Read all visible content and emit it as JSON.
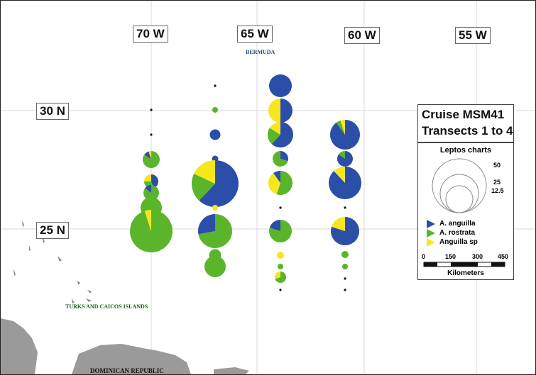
{
  "map": {
    "longitude_labels": [
      "70 W",
      "65 W",
      "60 W",
      "55 W"
    ],
    "latitude_labels": [
      "30 N",
      "25 N"
    ],
    "places": {
      "bermuda": "BERMUDA",
      "turks_caicos": "TURKS AND CAICOS ISLANDS",
      "dominican_republic": "DOMINICAN REPUBLIC"
    }
  },
  "title": {
    "line1": "Cruise MSM41",
    "line2": "Transects 1 to 4"
  },
  "legend": {
    "header": "Leptos charts",
    "sizes": [
      "50",
      "25",
      "12.5"
    ],
    "species": [
      {
        "name": "A. anguilla",
        "color": "#2b4ea8",
        "icon": "triangle-right"
      },
      {
        "name": "A. rostrata",
        "color": "#5ab52b",
        "icon": "triangle-right"
      },
      {
        "name": "Anguilla sp",
        "color": "#f6e61c",
        "icon": "triangle-right"
      }
    ],
    "scale_ticks": [
      "0",
      "150",
      "300",
      "450"
    ],
    "scale_unit": "Kilometers"
  },
  "colors": {
    "anguilla": "#2b4ea8",
    "rostrata": "#5ab52b",
    "sp": "#f6e61c",
    "land": "#9a9a9a",
    "grid": "#dddddd"
  }
}
